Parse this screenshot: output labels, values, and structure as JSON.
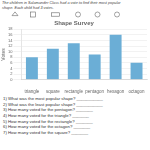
{
  "chart_data": {
    "type": "bar",
    "title": "Shape Survey",
    "subtitle": [
      "The children in Salamander Class had a vote to find their most popular",
      "shape. Each child had 3 votes."
    ],
    "categories": [
      "triangle",
      "square",
      "rectangle",
      "pentagon",
      "hexagon",
      "octagon"
    ],
    "values": [
      8,
      11,
      13,
      9,
      16,
      6
    ],
    "color": "#6baed6",
    "ylabel": "Votes",
    "ylim": [
      0,
      18
    ],
    "yticks": [
      0,
      2,
      4,
      6,
      8,
      10,
      12,
      14,
      16,
      18
    ],
    "grid": true,
    "annotations": [
      "1) What was the most popular shape? ___________",
      "2) What was the least popular shape? ___________",
      "3) How many voted for the pentagon? _______",
      "4) How many voted for the triangle? _______",
      "5) How many voted for the rectangle? _______",
      "6) How many voted for the octagon? _______",
      "7) How many voted for the square? _______"
    ]
  }
}
